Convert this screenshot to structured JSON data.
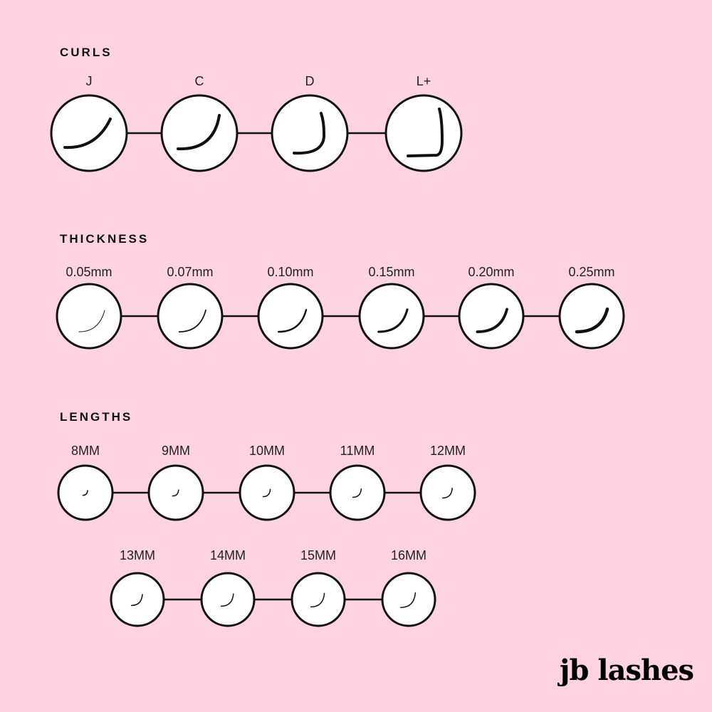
{
  "colors": {
    "background": "#ffd3e1",
    "stroke": "#111111",
    "circle": "#ffffff"
  },
  "sections": [
    {
      "title": "CURLS",
      "items": [
        "J",
        "C",
        "D",
        "L+"
      ]
    },
    {
      "title": "THICKNESS",
      "items": [
        "0.05mm",
        "0.07mm",
        "0.10mm",
        "0.15mm",
        "0.20mm",
        "0.25mm"
      ]
    },
    {
      "title": "LENGTHS",
      "items": [
        "8MM",
        "9MM",
        "10MM",
        "11MM",
        "12MM",
        "13MM",
        "14MM",
        "15MM",
        "16MM"
      ]
    }
  ],
  "logo": "jb lashes"
}
